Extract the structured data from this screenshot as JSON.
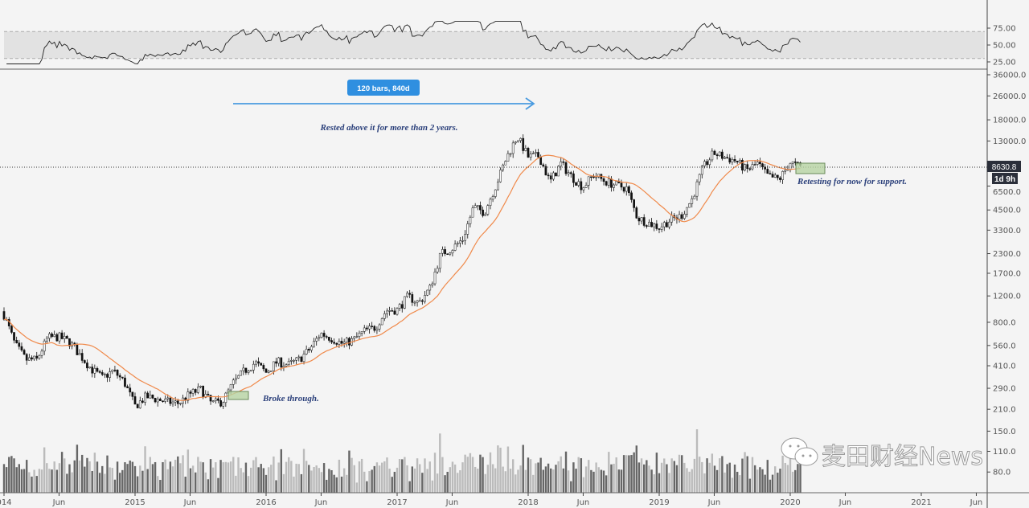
{
  "chart_data": {
    "type": "candlestick",
    "scale": "log",
    "interval": "weekly",
    "monthly_closes": {
      "start": "2014-01",
      "values": [
        900,
        570,
        450,
        450,
        630,
        640,
        590,
        480,
        390,
        340,
        380,
        320,
        220,
        255,
        245,
        235,
        230,
        265,
        285,
        230,
        236,
        315,
        378,
        430,
        370,
        437,
        416,
        450,
        530,
        675,
        625,
        575,
        610,
        700,
        740,
        960,
        970,
        1190,
        1080,
        1350,
        2300,
        2480,
        2870,
        4700,
        4340,
        6470,
        10000,
        14000,
        10200,
        10300,
        6900,
        9200,
        7500,
        6400,
        7730,
        7030,
        6600,
        6300,
        4000,
        3700,
        3450,
        3850,
        4100,
        5300,
        8600,
        10800,
        10100,
        9600,
        8300,
        9200,
        7500,
        7200,
        9350,
        8630
      ]
    },
    "moving_average": {
      "color": "#f08a4b",
      "period_weeks": 20
    },
    "indicator": {
      "name": "RSI",
      "ticks": [
        "75.00",
        "50.00",
        "25.00"
      ],
      "band": [
        30,
        70
      ]
    },
    "y_ticks": [
      "36000.0",
      "26000.0",
      "18000.0",
      "13000.0",
      "6500.0",
      "4500.0",
      "3300.0",
      "2300.0",
      "1700.0",
      "1200.0",
      "800.0",
      "560.0",
      "410.0",
      "290.0",
      "210.0",
      "150.0",
      "110.0",
      "80.0"
    ],
    "y_tick_values": [
      36000,
      26000,
      18000,
      13000,
      6500,
      4500,
      3300,
      2300,
      1700,
      1200,
      800,
      560,
      410,
      290,
      210,
      150,
      110,
      80
    ],
    "x_ticks": [
      {
        "label": "014",
        "t": 2014.0
      },
      {
        "label": "Jun",
        "t": 2014.42
      },
      {
        "label": "2015",
        "t": 2015.0
      },
      {
        "label": "Jun",
        "t": 2015.42
      },
      {
        "label": "2016",
        "t": 2016.0
      },
      {
        "label": "Jun",
        "t": 2016.42
      },
      {
        "label": "2017",
        "t": 2017.0
      },
      {
        "label": "Jun",
        "t": 2017.42
      },
      {
        "label": "2018",
        "t": 2018.0
      },
      {
        "label": "Jun",
        "t": 2018.42
      },
      {
        "label": "2019",
        "t": 2019.0
      },
      {
        "label": "Jun",
        "t": 2019.42
      },
      {
        "label": "2020",
        "t": 2020.0
      },
      {
        "label": "Jun",
        "t": 2020.42
      },
      {
        "label": "2021",
        "t": 2021.0
      },
      {
        "label": "Jun",
        "t": 2021.42
      }
    ],
    "x_range": [
      2014.0,
      2021.5
    ],
    "y_range": [
      60,
      40000
    ],
    "current_price": {
      "label": "8630.8",
      "value": 8630.8,
      "countdown": "1d 9h"
    },
    "annotations": {
      "measure_label": "120 bars, 840d",
      "rested": "Rested above it for more than 2 years.",
      "broke": "Broke through.",
      "retest": "Retesting for now for support."
    },
    "colors": {
      "up": "#ffffff",
      "down": "#111111",
      "measure": "#2f8fe0",
      "box": "#b7d3a3",
      "annotation": "#2a3f7a"
    }
  },
  "watermark": "麦田财经News"
}
